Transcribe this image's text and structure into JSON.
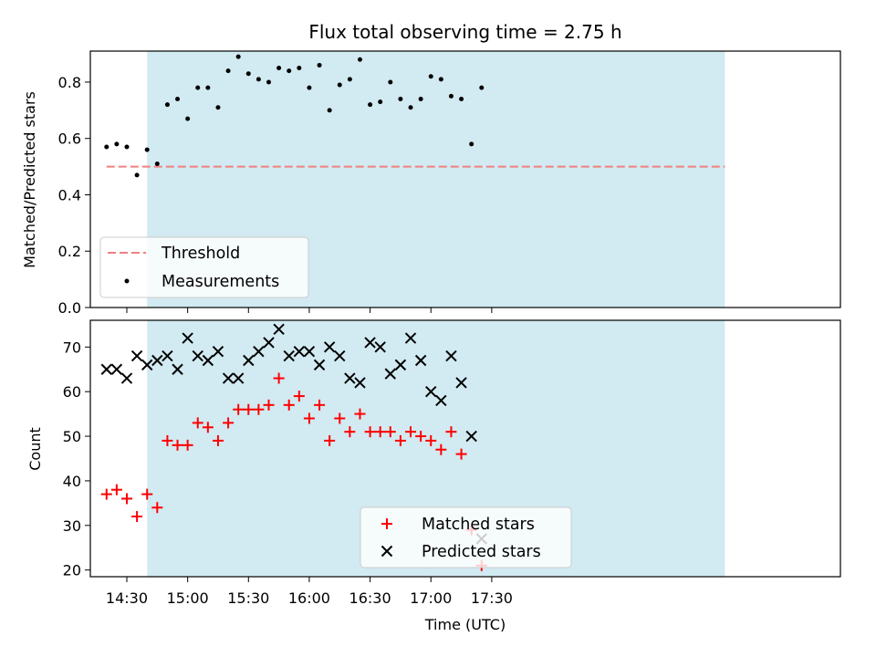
{
  "title": "Flux total observing time = 2.75 h",
  "colors": {
    "shade": "#add8e6",
    "threshold": "#f08080",
    "measurement": "#000000",
    "matched": "#ff0000",
    "predicted": "#000000"
  },
  "chart_data": [
    {
      "type": "scatter",
      "panel": "top",
      "ylabel": "Matched/Predicted stars",
      "xlabel": "",
      "ylim": [
        0.0,
        0.91
      ],
      "yticks": [
        "0.0",
        "0.2",
        "0.4",
        "0.6",
        "0.8"
      ],
      "xlim_minutes": [
        852,
        1222
      ],
      "shaded_region_minutes": [
        880,
        1165
      ],
      "legend_position": "lower-left",
      "threshold": {
        "name": "Threshold",
        "value": 0.5,
        "x_range_minutes": [
          860,
          1165
        ],
        "style": "dashed"
      },
      "series": [
        {
          "name": "Measurements",
          "marker": "dot",
          "x_minutes": [
            860,
            865,
            870,
            875,
            880,
            885,
            890,
            895,
            900,
            905,
            910,
            915,
            920,
            925,
            930,
            935,
            940,
            945,
            950,
            955,
            960,
            965,
            970,
            975,
            980,
            985,
            990,
            995,
            1000,
            1005,
            1010,
            1015,
            1020,
            1025,
            1030,
            1035,
            1040,
            1045,
            1050,
            1055,
            1060,
            1065
          ],
          "values": [
            0.57,
            0.58,
            0.57,
            0.47,
            0.56,
            0.51,
            0.72,
            0.74,
            0.67,
            0.78,
            0.78,
            0.71,
            0.84,
            0.89,
            0.83,
            0.81,
            0.8,
            0.85,
            0.84,
            0.85,
            0.78,
            0.86,
            0.7,
            0.79,
            0.81,
            0.88,
            0.72,
            0.73,
            0.8,
            0.74,
            0.71,
            0.74,
            0.82,
            0.81,
            0.75,
            0.74,
            0.58,
            0.78,
            null,
            null,
            null,
            null
          ]
        }
      ]
    },
    {
      "type": "scatter",
      "panel": "bottom",
      "ylabel": "Count",
      "xlabel": "Time (UTC)",
      "ylim": [
        18.5,
        76
      ],
      "yticks": [
        "20",
        "30",
        "40",
        "50",
        "60",
        "70"
      ],
      "x_tick_labels": [
        "14:30",
        "15:00",
        "15:30",
        "16:00",
        "16:30",
        "17:00",
        "17:30"
      ],
      "x_ticks_minutes": [
        870,
        900,
        930,
        960,
        990,
        1020,
        1050
      ],
      "xlim_minutes": [
        852,
        1222
      ],
      "shaded_region_minutes": [
        880,
        1165
      ],
      "legend_position": "lower-center",
      "series": [
        {
          "name": "Matched stars",
          "marker": "plus",
          "values": [
            37,
            38,
            36,
            32,
            37,
            34,
            49,
            48,
            48,
            53,
            52,
            49,
            53,
            56,
            56,
            56,
            57,
            63,
            57,
            59,
            54,
            57,
            49,
            54,
            51,
            55,
            51,
            51,
            51,
            49,
            51,
            50,
            49,
            47,
            51,
            46,
            29,
            21
          ]
        },
        {
          "name": "Predicted stars",
          "marker": "x",
          "values": [
            65,
            65,
            63,
            68,
            66,
            67,
            68,
            65,
            72,
            68,
            67,
            69,
            63,
            63,
            67,
            69,
            71,
            74,
            68,
            69,
            69,
            66,
            70,
            68,
            63,
            62,
            71,
            70,
            64,
            66,
            72,
            67,
            60,
            58,
            68,
            62,
            50,
            27
          ]
        }
      ]
    }
  ]
}
